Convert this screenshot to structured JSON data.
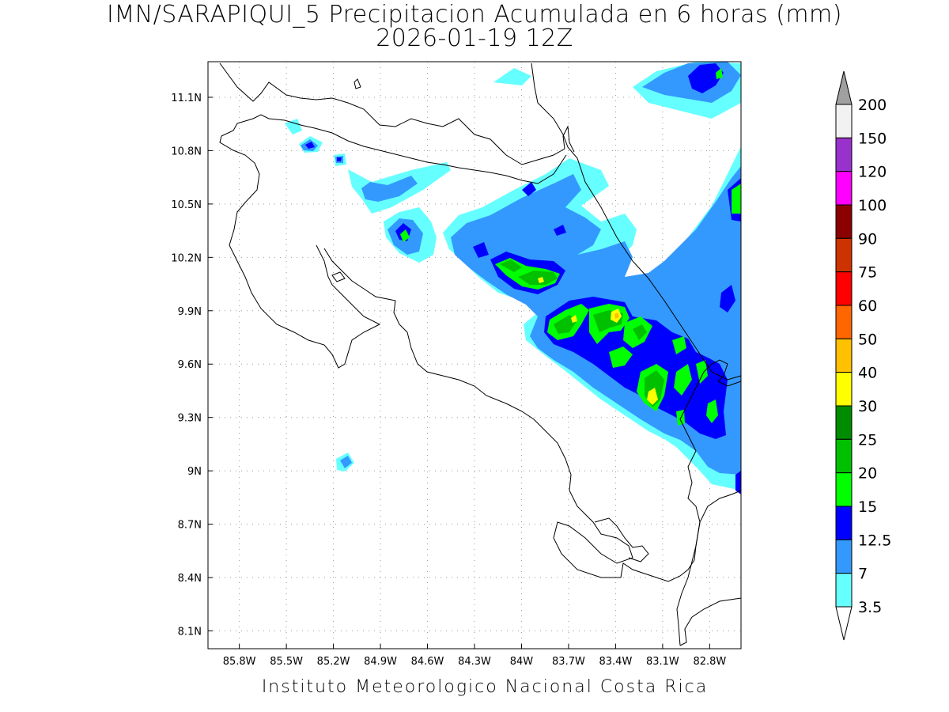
{
  "title_line1": "IMN/SARAPIQUI_5 Precipitacion Acumulada en 6 horas (mm)",
  "title_line2": "2026-01-19 12Z",
  "footer": "Instituto Meteorologico Nacional Costa Rica",
  "map": {
    "lon_range": [
      -86.0,
      -82.6
    ],
    "lat_range": [
      8.0,
      11.3
    ],
    "grid": "dotted",
    "lon_ticks": [
      {
        "value": -85.8,
        "label": "85.8W"
      },
      {
        "value": -85.5,
        "label": "85.5W"
      },
      {
        "value": -85.2,
        "label": "85.2W"
      },
      {
        "value": -84.9,
        "label": "84.9W"
      },
      {
        "value": -84.6,
        "label": "84.6W"
      },
      {
        "value": -84.3,
        "label": "84.3W"
      },
      {
        "value": -84.0,
        "label": "84W"
      },
      {
        "value": -83.7,
        "label": "83.7W"
      },
      {
        "value": -83.4,
        "label": "83.4W"
      },
      {
        "value": -83.1,
        "label": "83.1W"
      },
      {
        "value": -82.8,
        "label": "82.8W"
      }
    ],
    "lat_ticks": [
      {
        "value": 11.1,
        "label": "11.1N"
      },
      {
        "value": 10.8,
        "label": "10.8N"
      },
      {
        "value": 10.5,
        "label": "10.5N"
      },
      {
        "value": 10.2,
        "label": "10.2N"
      },
      {
        "value": 9.9,
        "label": "9.9N"
      },
      {
        "value": 9.6,
        "label": "9.6N"
      },
      {
        "value": 9.3,
        "label": "9.3N"
      },
      {
        "value": 9.0,
        "label": "9N"
      },
      {
        "value": 8.7,
        "label": "8.7N"
      },
      {
        "value": 8.4,
        "label": "8.4N"
      },
      {
        "value": 8.1,
        "label": "8.1N"
      }
    ]
  },
  "colorbar": {
    "top_triangle_color": "#a0a0a0",
    "bottom_triangle_color": "#ffffff",
    "levels": [
      {
        "label": "200",
        "color": "#f2f2f2"
      },
      {
        "label": "150",
        "color": "#9932cc"
      },
      {
        "label": "120",
        "color": "#ff00ff"
      },
      {
        "label": "100",
        "color": "#8b0000"
      },
      {
        "label": "90",
        "color": "#cd3300"
      },
      {
        "label": "75",
        "color": "#ff0000"
      },
      {
        "label": "60",
        "color": "#ff6600"
      },
      {
        "label": "50",
        "color": "#ffc000"
      },
      {
        "label": "40",
        "color": "#ffff00"
      },
      {
        "label": "30",
        "color": "#008c00"
      },
      {
        "label": "25",
        "color": "#00c000"
      },
      {
        "label": "20",
        "color": "#00ff00"
      },
      {
        "label": "15",
        "color": "#0000ff"
      },
      {
        "label": "12.5",
        "color": "#3399ff"
      },
      {
        "label": "7",
        "color": "#66ffff"
      },
      {
        "label": "3.5",
        "color": "#ffffff"
      }
    ]
  },
  "precip_colors": {
    "c3_5": "#66ffff",
    "c7": "#3399ff",
    "c12_5": "#0000ff",
    "c15": "#00ff00",
    "c20": "#00c000",
    "c25": "#008c00",
    "c30": "#ffff00",
    "c40": "#ffc000"
  }
}
